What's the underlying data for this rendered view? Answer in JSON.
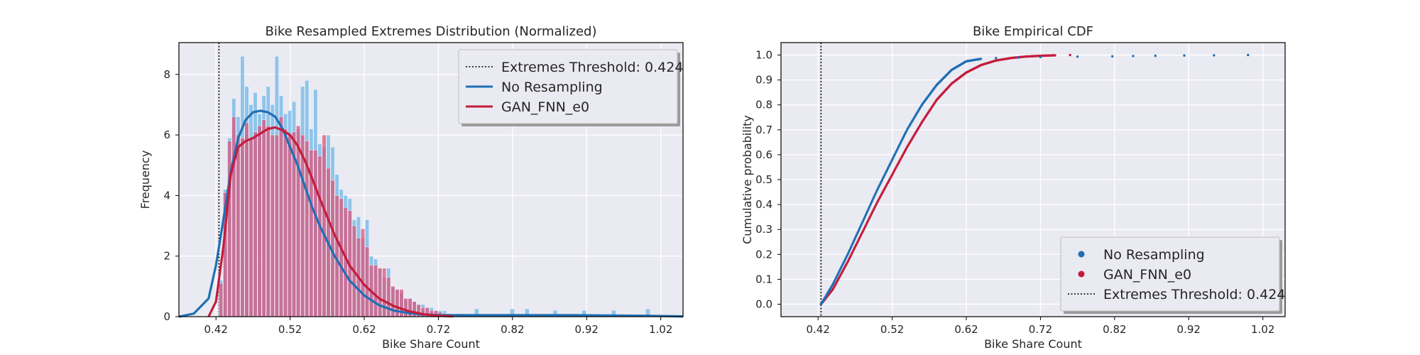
{
  "chart_data": [
    {
      "type": "bar",
      "title": "Bike Resampled Extremes Distribution (Normalized)",
      "xlabel": "Bike Share Count",
      "ylabel": "Frequency",
      "xlim": [
        0.37,
        1.05
      ],
      "ylim": [
        0,
        9.05
      ],
      "xticks": [
        "0.42",
        "0.52",
        "0.62",
        "0.72",
        "0.82",
        "0.92",
        "1.02"
      ],
      "yticks": [
        "0",
        "2",
        "4",
        "6",
        "8"
      ],
      "grid": true,
      "legend_position": "top-right",
      "threshold": {
        "label": "Extremes Threshold: 0.424",
        "value": 0.424
      },
      "bins": {
        "start": 0.424,
        "width": 0.0058
      },
      "series": [
        {
          "name": "No Resampling",
          "color": "#1f6fb4",
          "hist_color": "#80bde9",
          "hist": [
            1.2,
            4.2,
            5.9,
            7.2,
            6.6,
            8.6,
            7.6,
            7.0,
            7.4,
            6.7,
            7.3,
            7.6,
            7.0,
            8.6,
            7.3,
            6.7,
            6.8,
            7.1,
            6.2,
            7.6,
            7.8,
            6.2,
            7.5,
            5.7,
            5.6,
            6.0,
            5.6,
            4.7,
            4.2,
            4.0,
            3.9,
            3.2,
            3.3,
            2.6,
            3.2,
            2.0,
            1.9,
            1.6,
            1.3,
            1.6,
            1.0,
            0.9,
            0.8,
            0.6,
            0.6,
            0.5,
            0.4,
            0.4,
            0.3,
            0.3,
            0.2,
            0.2,
            0.2,
            0.1,
            0.1,
            0.1,
            0.1
          ],
          "spikes": [
            [
              0.769,
              0.25
            ],
            [
              0.817,
              0.25
            ],
            [
              0.837,
              0.25
            ],
            [
              0.875,
              0.2
            ],
            [
              0.914,
              0.2
            ],
            [
              0.954,
              0.2
            ],
            [
              1.0,
              0.25
            ]
          ],
          "kde": [
            [
              0.37,
              0.0
            ],
            [
              0.39,
              0.1
            ],
            [
              0.41,
              0.6
            ],
            [
              0.42,
              1.7
            ],
            [
              0.43,
              3.2
            ],
            [
              0.44,
              4.8
            ],
            [
              0.45,
              5.9
            ],
            [
              0.46,
              6.5
            ],
            [
              0.47,
              6.75
            ],
            [
              0.48,
              6.8
            ],
            [
              0.49,
              6.75
            ],
            [
              0.5,
              6.6
            ],
            [
              0.51,
              6.2
            ],
            [
              0.52,
              5.6
            ],
            [
              0.53,
              5.0
            ],
            [
              0.54,
              4.3
            ],
            [
              0.55,
              3.6
            ],
            [
              0.56,
              3.0
            ],
            [
              0.57,
              2.5
            ],
            [
              0.58,
              2.0
            ],
            [
              0.59,
              1.6
            ],
            [
              0.6,
              1.2
            ],
            [
              0.62,
              0.7
            ],
            [
              0.64,
              0.38
            ],
            [
              0.66,
              0.2
            ],
            [
              0.68,
              0.12
            ],
            [
              0.7,
              0.07
            ],
            [
              0.72,
              0.05
            ],
            [
              0.76,
              0.05
            ],
            [
              0.8,
              0.05
            ],
            [
              0.85,
              0.05
            ],
            [
              0.9,
              0.05
            ],
            [
              0.95,
              0.04
            ],
            [
              1.0,
              0.03
            ],
            [
              1.05,
              0.01
            ]
          ]
        },
        {
          "name": "GAN_FNN_e0",
          "color": "#c41c3d",
          "hist_color": "#d9527a",
          "hist": [
            1.1,
            4.1,
            5.8,
            6.6,
            6.0,
            5.9,
            6.4,
            5.9,
            6.1,
            6.3,
            6.5,
            6.3,
            6.0,
            6.0,
            6.6,
            6.2,
            6.0,
            6.1,
            6.3,
            6.0,
            5.8,
            5.5,
            5.5,
            5.3,
            6.0,
            4.9,
            4.5,
            4.0,
            3.9,
            3.6,
            3.5,
            3.0,
            2.6,
            2.9,
            2.3,
            1.7,
            1.7,
            1.6,
            1.6,
            1.3,
            1.0,
            0.9,
            0.9,
            0.6,
            0.6,
            0.5,
            0.4,
            0.3,
            0.3,
            0.2,
            0.2,
            0.15,
            0.1,
            0.1,
            0.08,
            0.05,
            0.05
          ],
          "spikes": [],
          "kde": [
            [
              0.41,
              0.0
            ],
            [
              0.42,
              0.5
            ],
            [
              0.43,
              2.3
            ],
            [
              0.44,
              4.7
            ],
            [
              0.45,
              5.6
            ],
            [
              0.46,
              5.8
            ],
            [
              0.47,
              5.9
            ],
            [
              0.48,
              6.05
            ],
            [
              0.49,
              6.2
            ],
            [
              0.5,
              6.25
            ],
            [
              0.51,
              6.15
            ],
            [
              0.52,
              6.0
            ],
            [
              0.53,
              5.65
            ],
            [
              0.54,
              5.15
            ],
            [
              0.55,
              4.55
            ],
            [
              0.56,
              3.9
            ],
            [
              0.57,
              3.3
            ],
            [
              0.58,
              2.7
            ],
            [
              0.59,
              2.2
            ],
            [
              0.6,
              1.7
            ],
            [
              0.62,
              1.05
            ],
            [
              0.64,
              0.6
            ],
            [
              0.66,
              0.35
            ],
            [
              0.68,
              0.18
            ],
            [
              0.7,
              0.08
            ],
            [
              0.72,
              0.03
            ],
            [
              0.74,
              0.01
            ]
          ]
        }
      ]
    },
    {
      "type": "scatter",
      "title": "Bike Empirical CDF",
      "xlabel": "Bike Share Count",
      "ylabel": "Cumulative probability",
      "xlim": [
        0.37,
        1.05
      ],
      "ylim": [
        -0.05,
        1.05
      ],
      "xticks": [
        "0.42",
        "0.52",
        "0.62",
        "0.72",
        "0.82",
        "0.92",
        "1.02"
      ],
      "yticks": [
        "0.0",
        "0.1",
        "0.2",
        "0.3",
        "0.4",
        "0.5",
        "0.6",
        "0.7",
        "0.8",
        "0.9",
        "1.0"
      ],
      "grid": true,
      "legend_position": "bottom-right",
      "threshold": {
        "label": "Extremes Threshold: 0.424",
        "value": 0.424
      },
      "series": [
        {
          "name": "No Resampling",
          "color": "#1f6fb4",
          "points": [
            [
              0.424,
              0.0
            ],
            [
              0.44,
              0.08
            ],
            [
              0.46,
              0.2
            ],
            [
              0.48,
              0.33
            ],
            [
              0.5,
              0.46
            ],
            [
              0.52,
              0.58
            ],
            [
              0.54,
              0.7
            ],
            [
              0.56,
              0.8
            ],
            [
              0.58,
              0.88
            ],
            [
              0.6,
              0.94
            ],
            [
              0.62,
              0.975
            ],
            [
              0.64,
              0.985
            ],
            [
              0.66,
              0.988
            ],
            [
              0.69,
              0.99
            ],
            [
              0.72,
              0.992
            ],
            [
              0.77,
              0.994
            ],
            [
              0.817,
              0.995
            ],
            [
              0.845,
              0.996
            ],
            [
              0.875,
              0.997
            ],
            [
              0.914,
              0.998
            ],
            [
              0.954,
              0.999
            ],
            [
              1.0,
              1.0
            ]
          ]
        },
        {
          "name": "GAN_FNN_e0",
          "color": "#c41c3d",
          "points": [
            [
              0.424,
              0.0
            ],
            [
              0.44,
              0.06
            ],
            [
              0.46,
              0.17
            ],
            [
              0.48,
              0.29
            ],
            [
              0.5,
              0.41
            ],
            [
              0.52,
              0.52
            ],
            [
              0.54,
              0.63
            ],
            [
              0.56,
              0.73
            ],
            [
              0.58,
              0.82
            ],
            [
              0.6,
              0.885
            ],
            [
              0.62,
              0.93
            ],
            [
              0.64,
              0.96
            ],
            [
              0.66,
              0.978
            ],
            [
              0.68,
              0.988
            ],
            [
              0.7,
              0.994
            ],
            [
              0.72,
              0.997
            ],
            [
              0.74,
              0.999
            ],
            [
              0.76,
              1.0
            ]
          ]
        }
      ]
    }
  ]
}
